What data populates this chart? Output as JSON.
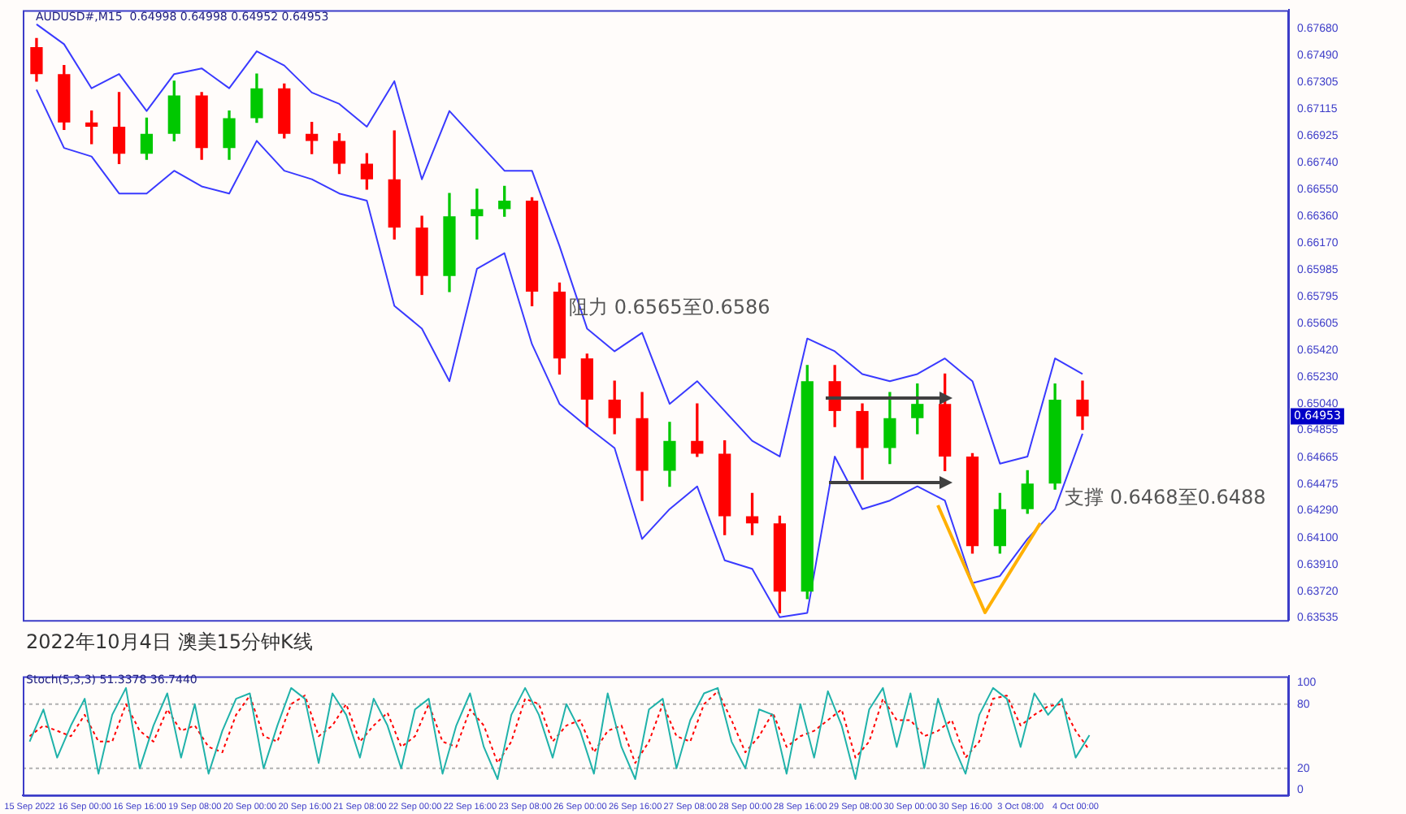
{
  "chart_data": [
    {
      "type": "candlestick",
      "title": "AUDUSD#,M15  0.64998 0.64998 0.64952 0.64953",
      "categories": [
        null,
        null,
        null,
        null,
        null,
        null,
        null,
        null,
        null,
        null,
        null,
        null,
        null,
        null,
        null,
        null,
        null,
        null,
        null,
        null,
        null,
        null,
        null,
        null,
        null,
        null,
        null,
        null,
        null,
        null,
        null,
        null,
        null,
        null,
        null,
        null,
        null,
        null,
        null,
        null,
        null,
        null,
        null,
        null,
        null,
        null
      ],
      "ohlc": [
        [
          0.6755,
          0.6761,
          0.6731,
          0.6736
        ],
        [
          0.6736,
          0.6742,
          0.6697,
          0.6702
        ],
        [
          0.6702,
          0.671,
          0.6687,
          0.6699
        ],
        [
          0.6699,
          0.6723,
          0.6673,
          0.668
        ],
        [
          0.668,
          0.6705,
          0.6676,
          0.6694
        ],
        [
          0.6694,
          0.6731,
          0.6689,
          0.6721
        ],
        [
          0.6721,
          0.6723,
          0.6676,
          0.6684
        ],
        [
          0.6684,
          0.671,
          0.6676,
          0.6705
        ],
        [
          0.6705,
          0.6736,
          0.6702,
          0.6726
        ],
        [
          0.6726,
          0.6729,
          0.6691,
          0.6694
        ],
        [
          0.6694,
          0.6702,
          0.668,
          0.6689
        ],
        [
          0.6689,
          0.6694,
          0.6666,
          0.6673
        ],
        [
          0.6673,
          0.668,
          0.6655,
          0.6662
        ],
        [
          0.6662,
          0.6696,
          0.662,
          0.6628
        ],
        [
          0.6628,
          0.6636,
          0.6581,
          0.6594
        ],
        [
          0.6594,
          0.6652,
          0.6583,
          0.6636
        ],
        [
          0.6636,
          0.6655,
          0.662,
          0.6641
        ],
        [
          0.6641,
          0.6657,
          0.6636,
          0.6647
        ],
        [
          0.6647,
          0.6649,
          0.6573,
          0.6583
        ],
        [
          0.6583,
          0.6589,
          0.6525,
          0.6536
        ],
        [
          0.6536,
          0.6539,
          0.6488,
          0.6507
        ],
        [
          0.6507,
          0.652,
          0.6483,
          0.6494
        ],
        [
          0.6494,
          0.6512,
          0.6436,
          0.6457
        ],
        [
          0.6457,
          0.6491,
          0.6446,
          0.6478
        ],
        [
          0.6478,
          0.6504,
          0.6467,
          0.6469
        ],
        [
          0.6469,
          0.6478,
          0.6412,
          0.6425
        ],
        [
          0.6425,
          0.6441,
          0.6412,
          0.642
        ],
        [
          0.642,
          0.6425,
          0.6357,
          0.6372
        ],
        [
          0.6372,
          0.6531,
          0.6367,
          0.652
        ],
        [
          0.652,
          0.6531,
          0.6488,
          0.6499
        ],
        [
          0.6499,
          0.6504,
          0.6451,
          0.6473
        ],
        [
          0.6473,
          0.6512,
          0.6462,
          0.6494
        ],
        [
          0.6494,
          0.6518,
          0.6483,
          0.6504
        ],
        [
          0.6504,
          0.6525,
          0.6457,
          0.6467
        ],
        [
          0.6467,
          0.6469,
          0.6399,
          0.6404
        ],
        [
          0.6404,
          0.6441,
          0.6399,
          0.643
        ],
        [
          0.643,
          0.6457,
          0.6427,
          0.6448
        ],
        [
          0.6448,
          0.6518,
          0.6444,
          0.6507
        ],
        [
          0.6507,
          0.652,
          0.6486,
          0.64953
        ],
        null,
        null,
        null,
        null,
        null,
        null,
        null
      ],
      "colors": [
        "#ff0000",
        "#ff0000",
        "#ff0000",
        "#ff0000",
        "#00c800",
        "#00c800",
        "#ff0000",
        "#00c800",
        "#00c800",
        "#ff0000",
        "#ff0000",
        "#ff0000",
        "#ff0000",
        "#ff0000",
        "#ff0000",
        "#00c800",
        "#00c800",
        "#00c800",
        "#ff0000",
        "#ff0000",
        "#ff0000",
        "#ff0000",
        "#ff0000",
        "#00c800",
        "#ff0000",
        "#ff0000",
        "#ff0000",
        "#ff0000",
        "#00c800",
        "#ff0000",
        "#ff0000",
        "#00c800",
        "#00c800",
        "#ff0000",
        "#ff0000",
        "#00c800",
        "#00c800",
        "#00c800",
        "#ff0000",
        null,
        null,
        null,
        null,
        null,
        null,
        null
      ],
      "series": [
        {
          "type": "line",
          "color": "#3a3aff",
          "values": [
            0.6771,
            0.6757,
            0.6726,
            0.6736,
            0.671,
            0.6736,
            0.674,
            0.6726,
            0.6752,
            0.6742,
            0.6723,
            0.6715,
            0.6699,
            0.6731,
            0.6662,
            0.671,
            0.6689,
            0.6668,
            0.6668,
            0.6615,
            0.6557,
            0.6541,
            0.6554,
            0.6504,
            0.652,
            0.6499,
            0.6478,
            0.6467,
            0.655,
            0.6541,
            0.6525,
            0.652,
            0.6525,
            0.6536,
            0.652,
            0.6462,
            0.6467,
            0.6536,
            0.6525,
            null,
            null,
            null,
            null,
            null,
            null,
            null
          ]
        },
        {
          "type": "line",
          "color": "#3a3aff",
          "values": [
            0.6725,
            0.6684,
            0.6678,
            0.6652,
            0.6652,
            0.6668,
            0.6657,
            0.6652,
            0.6689,
            0.6668,
            0.6662,
            0.6652,
            0.6647,
            0.6573,
            0.6557,
            0.652,
            0.6599,
            0.661,
            0.6546,
            0.6504,
            0.6488,
            0.6473,
            0.6409,
            0.643,
            0.6446,
            0.6394,
            0.6388,
            0.6354,
            0.6357,
            0.6467,
            0.643,
            0.6436,
            0.6446,
            0.6436,
            0.6378,
            0.6383,
            0.6409,
            0.643,
            0.6483,
            null,
            null,
            null,
            null,
            null,
            null,
            null
          ]
        }
      ],
      "ylim": [
        0.6352,
        0.6781
      ],
      "yticks": [
        {
          "value": 0.6768,
          "label": "0.67680"
        },
        {
          "value": 0.6749,
          "label": "0.67490"
        },
        {
          "value": 0.67305,
          "label": "0.67305"
        },
        {
          "value": 0.67115,
          "label": "0.67115"
        },
        {
          "value": 0.66925,
          "label": "0.66925"
        },
        {
          "value": 0.6674,
          "label": "0.66740"
        },
        {
          "value": 0.6655,
          "label": "0.66550"
        },
        {
          "value": 0.6636,
          "label": "0.66360"
        },
        {
          "value": 0.6617,
          "label": "0.66170"
        },
        {
          "value": 0.65985,
          "label": "0.65985"
        },
        {
          "value": 0.65795,
          "label": "0.65795"
        },
        {
          "value": 0.65605,
          "label": "0.65605"
        },
        {
          "value": 0.6542,
          "label": "0.65420"
        },
        {
          "value": 0.6523,
          "label": "0.65230"
        },
        {
          "value": 0.6504,
          "label": "0.65040"
        },
        {
          "value": 0.64855,
          "label": "0.64855"
        },
        {
          "value": 0.64665,
          "label": "0.64665"
        },
        {
          "value": 0.64475,
          "label": "0.64475"
        },
        {
          "value": 0.6429,
          "label": "0.64290"
        },
        {
          "value": 0.641,
          "label": "0.64100"
        },
        {
          "value": 0.6391,
          "label": "0.63910"
        },
        {
          "value": 0.6372,
          "label": "0.63720"
        },
        {
          "value": 0.63535,
          "label": "0.63535"
        }
      ],
      "annotations": [
        "阻力 0.6565至0.6586",
        "支撑 0.6468至0.6488",
        "2022年10月4日 澳美15分钟K线",
        {
          "text": "0.64953",
          "y": 0.64953
        }
      ]
    },
    {
      "type": "line",
      "title": "Stoch(5,3,3) 51.3378 36.7440",
      "categories": [
        "15 Sep 2022",
        null,
        null,
        null,
        "16 Sep 00:00",
        null,
        null,
        null,
        "16 Sep 16:00",
        null,
        null,
        null,
        "19 Sep 08:00",
        null,
        null,
        null,
        "20 Sep 00:00",
        null,
        null,
        null,
        "20 Sep 16:00",
        null,
        null,
        null,
        "21 Sep 08:00",
        null,
        null,
        null,
        "22 Sep 00:00",
        null,
        null,
        null,
        "22 Sep 16:00",
        null,
        null,
        null,
        "23 Sep 08:00",
        null,
        null,
        null,
        "26 Sep 00:00",
        null,
        null,
        null,
        "26 Sep 16:00",
        null,
        null,
        null,
        "27 Sep 08:00",
        null,
        null,
        null,
        "28 Sep 00:00",
        null,
        null,
        null,
        "28 Sep 16:00",
        null,
        null,
        null,
        "29 Sep 08:00",
        null,
        null,
        null,
        "30 Sep 00:00",
        null,
        null,
        null,
        "30 Sep 16:00",
        null,
        null,
        null,
        "3 Oct 08:00",
        null,
        null,
        null,
        "4 Oct 00:00",
        null,
        null,
        null,
        null,
        null,
        null,
        null,
        null,
        null,
        null,
        null,
        null,
        null,
        null,
        null
      ],
      "series": [
        {
          "color": "#20b2aa",
          "line_style": "solid",
          "values": [
            45,
            75,
            30,
            60,
            85,
            15,
            70,
            95,
            20,
            60,
            90,
            30,
            80,
            15,
            55,
            85,
            90,
            20,
            60,
            95,
            85,
            25,
            90,
            70,
            30,
            85,
            60,
            20,
            75,
            85,
            15,
            60,
            90,
            40,
            10,
            70,
            95,
            70,
            30,
            80,
            55,
            15,
            90,
            40,
            10,
            75,
            85,
            20,
            65,
            90,
            95,
            45,
            20,
            75,
            70,
            15,
            80,
            30,
            92,
            60,
            10,
            75,
            95,
            40,
            90,
            20,
            85,
            45,
            15,
            70,
            95,
            85,
            40,
            90,
            70,
            85,
            30,
            51,
            null,
            null,
            null,
            null,
            null,
            null,
            null,
            null,
            null,
            null,
            null,
            null,
            null,
            null
          ]
        },
        {
          "color": "#ff0000",
          "line_style": "dotted",
          "values": [
            50,
            60,
            55,
            50,
            70,
            45,
            45,
            80,
            55,
            45,
            75,
            55,
            60,
            40,
            35,
            70,
            88,
            50,
            45,
            80,
            88,
            50,
            60,
            80,
            45,
            60,
            72,
            40,
            50,
            80,
            45,
            40,
            75,
            60,
            25,
            45,
            85,
            80,
            45,
            60,
            65,
            35,
            55,
            60,
            25,
            45,
            80,
            50,
            45,
            80,
            92,
            65,
            35,
            50,
            72,
            40,
            50,
            55,
            65,
            75,
            30,
            45,
            85,
            65,
            65,
            50,
            55,
            65,
            30,
            45,
            85,
            88,
            60,
            70,
            78,
            80,
            55,
            37,
            null,
            null,
            null,
            null,
            null,
            null,
            null,
            null,
            null,
            null,
            null,
            null,
            null,
            null
          ]
        }
      ],
      "ylim": [
        -5,
        106
      ],
      "yticks": [
        0,
        20,
        80,
        100
      ],
      "ref_lines": [
        {
          "axis": "y",
          "value": 80,
          "color": "#b0b0b0",
          "line_style": "dotted"
        },
        {
          "axis": "y",
          "value": 20,
          "color": "#b0b0b0",
          "line_style": "dotted"
        }
      ]
    }
  ]
}
